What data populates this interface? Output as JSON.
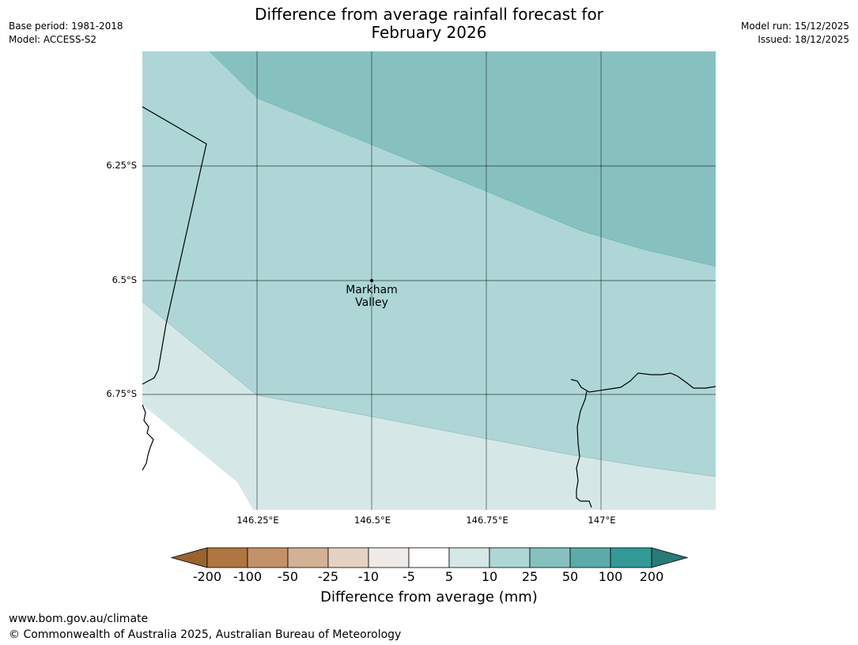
{
  "header": {
    "title_line1": "Difference from average rainfall forecast for",
    "title_line2": "February 2026",
    "base_period": "Base period: 1981-2018",
    "model": "Model: ACCESS-S2",
    "model_run": "Model run: 15/12/2025",
    "issued": "Issued: 18/12/2025"
  },
  "map": {
    "lat_labels": [
      "6.25°S",
      "6.5°S",
      "6.75°S"
    ],
    "lon_labels": [
      "146.25°E",
      "146.5°E",
      "146.75°E",
      "147°E"
    ],
    "place": {
      "name_line1": "Markham",
      "name_line2": "Valley"
    },
    "region_colors": {
      "5_to_10": "#d5e8e7",
      "10_to_25": "#aed6d6",
      "25_to_50": "#86c1c0"
    }
  },
  "colorbar": {
    "title": "Difference from average (mm)",
    "tick_labels": [
      "-200",
      "-100",
      "-50",
      "-25",
      "-10",
      "-5",
      "5",
      "10",
      "25",
      "50",
      "100",
      "200"
    ],
    "colors": [
      "#9b6230",
      "#b07540",
      "#c39169",
      "#d3b194",
      "#e6d2c3",
      "#efebe8",
      "#ffffff",
      "#d5e8e7",
      "#aed6d6",
      "#86c1c0",
      "#5cabab",
      "#339997",
      "#2a7a78"
    ]
  },
  "footer": {
    "url": "www.bom.gov.au/climate",
    "copyright": "© Commonwealth of Australia 2025, Australian Bureau of Meteorology"
  }
}
